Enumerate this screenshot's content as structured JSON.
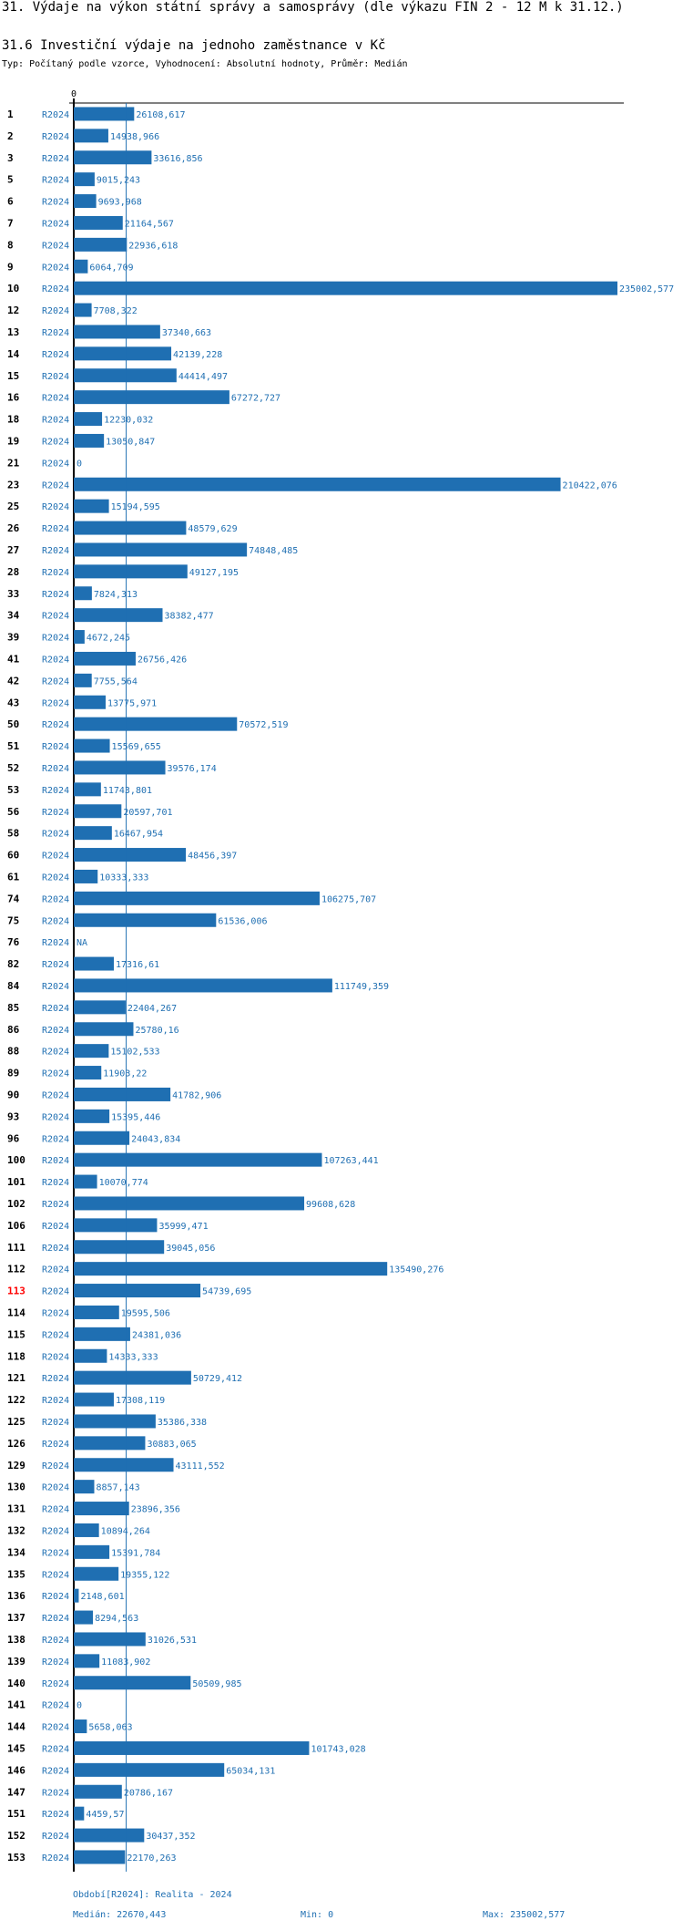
{
  "header": {
    "title": "31. Výdaje na výkon státní správy a samosprávy (dle výkazu FIN 2 - 12 M k 31.12.)",
    "subtitle": "31.6 Investiční výdaje na jednoho zaměstnance v Kč",
    "meta": "Typ: Počítaný podle vzorce, Vyhodnocení: Absolutní hodnoty, Průměr: Medián"
  },
  "colors": {
    "bar": "#1f6fb2",
    "label": "#1f6fb2",
    "highlight": "#ff0000"
  },
  "chart_data": {
    "type": "bar",
    "orientation": "horizontal",
    "axis_zero_label": "0",
    "xlim": [
      0,
      235002.577
    ],
    "median": 22670.443,
    "highlight_id": "113",
    "rows": [
      {
        "id": "1",
        "period": "R2024",
        "value": 26108.617,
        "label": "26108,617"
      },
      {
        "id": "2",
        "period": "R2024",
        "value": 14938.966,
        "label": "14938,966"
      },
      {
        "id": "3",
        "period": "R2024",
        "value": 33616.856,
        "label": "33616,856"
      },
      {
        "id": "5",
        "period": "R2024",
        "value": 9015.243,
        "label": "9015,243"
      },
      {
        "id": "6",
        "period": "R2024",
        "value": 9693.968,
        "label": "9693,968"
      },
      {
        "id": "7",
        "period": "R2024",
        "value": 21164.567,
        "label": "21164,567"
      },
      {
        "id": "8",
        "period": "R2024",
        "value": 22936.618,
        "label": "22936,618"
      },
      {
        "id": "9",
        "period": "R2024",
        "value": 6064.709,
        "label": "6064,709"
      },
      {
        "id": "10",
        "period": "R2024",
        "value": 235002.577,
        "label": "235002,577"
      },
      {
        "id": "12",
        "period": "R2024",
        "value": 7708.322,
        "label": "7708,322"
      },
      {
        "id": "13",
        "period": "R2024",
        "value": 37340.663,
        "label": "37340,663"
      },
      {
        "id": "14",
        "period": "R2024",
        "value": 42139.228,
        "label": "42139,228"
      },
      {
        "id": "15",
        "period": "R2024",
        "value": 44414.497,
        "label": "44414,497"
      },
      {
        "id": "16",
        "period": "R2024",
        "value": 67272.727,
        "label": "67272,727"
      },
      {
        "id": "18",
        "period": "R2024",
        "value": 12230.032,
        "label": "12230,032"
      },
      {
        "id": "19",
        "period": "R2024",
        "value": 13050.847,
        "label": "13050,847"
      },
      {
        "id": "21",
        "period": "R2024",
        "value": 0,
        "label": "0"
      },
      {
        "id": "23",
        "period": "R2024",
        "value": 210422.076,
        "label": "210422,076"
      },
      {
        "id": "25",
        "period": "R2024",
        "value": 15194.595,
        "label": "15194,595"
      },
      {
        "id": "26",
        "period": "R2024",
        "value": 48579.629,
        "label": "48579,629"
      },
      {
        "id": "27",
        "period": "R2024",
        "value": 74848.485,
        "label": "74848,485"
      },
      {
        "id": "28",
        "period": "R2024",
        "value": 49127.195,
        "label": "49127,195"
      },
      {
        "id": "33",
        "period": "R2024",
        "value": 7824.313,
        "label": "7824,313"
      },
      {
        "id": "34",
        "period": "R2024",
        "value": 38382.477,
        "label": "38382,477"
      },
      {
        "id": "39",
        "period": "R2024",
        "value": 4672.245,
        "label": "4672,245"
      },
      {
        "id": "41",
        "period": "R2024",
        "value": 26756.426,
        "label": "26756,426"
      },
      {
        "id": "42",
        "period": "R2024",
        "value": 7755.564,
        "label": "7755,564"
      },
      {
        "id": "43",
        "period": "R2024",
        "value": 13775.971,
        "label": "13775,971"
      },
      {
        "id": "50",
        "period": "R2024",
        "value": 70572.519,
        "label": "70572,519"
      },
      {
        "id": "51",
        "period": "R2024",
        "value": 15569.655,
        "label": "15569,655"
      },
      {
        "id": "52",
        "period": "R2024",
        "value": 39576.174,
        "label": "39576,174"
      },
      {
        "id": "53",
        "period": "R2024",
        "value": 11743.801,
        "label": "11743,801"
      },
      {
        "id": "56",
        "period": "R2024",
        "value": 20597.701,
        "label": "20597,701"
      },
      {
        "id": "58",
        "period": "R2024",
        "value": 16467.954,
        "label": "16467,954"
      },
      {
        "id": "60",
        "period": "R2024",
        "value": 48456.397,
        "label": "48456,397"
      },
      {
        "id": "61",
        "period": "R2024",
        "value": 10333.333,
        "label": "10333,333"
      },
      {
        "id": "74",
        "period": "R2024",
        "value": 106275.707,
        "label": "106275,707"
      },
      {
        "id": "75",
        "period": "R2024",
        "value": 61536.006,
        "label": "61536,006"
      },
      {
        "id": "76",
        "period": "R2024",
        "value": null,
        "label": "NA"
      },
      {
        "id": "82",
        "period": "R2024",
        "value": 17316.61,
        "label": "17316,61"
      },
      {
        "id": "84",
        "period": "R2024",
        "value": 111749.359,
        "label": "111749,359"
      },
      {
        "id": "85",
        "period": "R2024",
        "value": 22404.267,
        "label": "22404,267"
      },
      {
        "id": "86",
        "period": "R2024",
        "value": 25780.16,
        "label": "25780,16"
      },
      {
        "id": "88",
        "period": "R2024",
        "value": 15102.533,
        "label": "15102,533"
      },
      {
        "id": "89",
        "period": "R2024",
        "value": 11903.22,
        "label": "11903,22"
      },
      {
        "id": "90",
        "period": "R2024",
        "value": 41782.906,
        "label": "41782,906"
      },
      {
        "id": "93",
        "period": "R2024",
        "value": 15395.446,
        "label": "15395,446"
      },
      {
        "id": "96",
        "period": "R2024",
        "value": 24043.834,
        "label": "24043,834"
      },
      {
        "id": "100",
        "period": "R2024",
        "value": 107263.441,
        "label": "107263,441"
      },
      {
        "id": "101",
        "period": "R2024",
        "value": 10070.774,
        "label": "10070,774"
      },
      {
        "id": "102",
        "period": "R2024",
        "value": 99608.628,
        "label": "99608,628"
      },
      {
        "id": "106",
        "period": "R2024",
        "value": 35999.471,
        "label": "35999,471"
      },
      {
        "id": "111",
        "period": "R2024",
        "value": 39045.056,
        "label": "39045,056"
      },
      {
        "id": "112",
        "period": "R2024",
        "value": 135490.276,
        "label": "135490,276"
      },
      {
        "id": "113",
        "period": "R2024",
        "value": 54739.695,
        "label": "54739,695"
      },
      {
        "id": "114",
        "period": "R2024",
        "value": 19595.506,
        "label": "19595,506"
      },
      {
        "id": "115",
        "period": "R2024",
        "value": 24381.036,
        "label": "24381,036"
      },
      {
        "id": "118",
        "period": "R2024",
        "value": 14333.333,
        "label": "14333,333"
      },
      {
        "id": "121",
        "period": "R2024",
        "value": 50729.412,
        "label": "50729,412"
      },
      {
        "id": "122",
        "period": "R2024",
        "value": 17308.119,
        "label": "17308,119"
      },
      {
        "id": "125",
        "period": "R2024",
        "value": 35386.338,
        "label": "35386,338"
      },
      {
        "id": "126",
        "period": "R2024",
        "value": 30883.065,
        "label": "30883,065"
      },
      {
        "id": "129",
        "period": "R2024",
        "value": 43111.552,
        "label": "43111,552"
      },
      {
        "id": "130",
        "period": "R2024",
        "value": 8857.143,
        "label": "8857,143"
      },
      {
        "id": "131",
        "period": "R2024",
        "value": 23896.356,
        "label": "23896,356"
      },
      {
        "id": "132",
        "period": "R2024",
        "value": 10894.264,
        "label": "10894,264"
      },
      {
        "id": "134",
        "period": "R2024",
        "value": 15391.784,
        "label": "15391,784"
      },
      {
        "id": "135",
        "period": "R2024",
        "value": 19355.122,
        "label": "19355,122"
      },
      {
        "id": "136",
        "period": "R2024",
        "value": 2148.601,
        "label": "2148,601"
      },
      {
        "id": "137",
        "period": "R2024",
        "value": 8294.563,
        "label": "8294,563"
      },
      {
        "id": "138",
        "period": "R2024",
        "value": 31026.531,
        "label": "31026,531"
      },
      {
        "id": "139",
        "period": "R2024",
        "value": 11083.902,
        "label": "11083,902"
      },
      {
        "id": "140",
        "period": "R2024",
        "value": 50509.985,
        "label": "50509,985"
      },
      {
        "id": "141",
        "period": "R2024",
        "value": 0,
        "label": "0"
      },
      {
        "id": "144",
        "period": "R2024",
        "value": 5658.063,
        "label": "5658,063"
      },
      {
        "id": "145",
        "period": "R2024",
        "value": 101743.028,
        "label": "101743,028"
      },
      {
        "id": "146",
        "period": "R2024",
        "value": 65034.131,
        "label": "65034,131"
      },
      {
        "id": "147",
        "period": "R2024",
        "value": 20786.167,
        "label": "20786,167"
      },
      {
        "id": "151",
        "period": "R2024",
        "value": 4459.57,
        "label": "4459,57"
      },
      {
        "id": "152",
        "period": "R2024",
        "value": 30437.352,
        "label": "30437,352"
      },
      {
        "id": "153",
        "period": "R2024",
        "value": 22170.263,
        "label": "22170,263"
      }
    ]
  },
  "footer": {
    "period": "Období[R2024]: Realita - 2024",
    "median": "Medián: 22670,443",
    "min": "Min: 0",
    "max": "Max: 235002,577"
  }
}
